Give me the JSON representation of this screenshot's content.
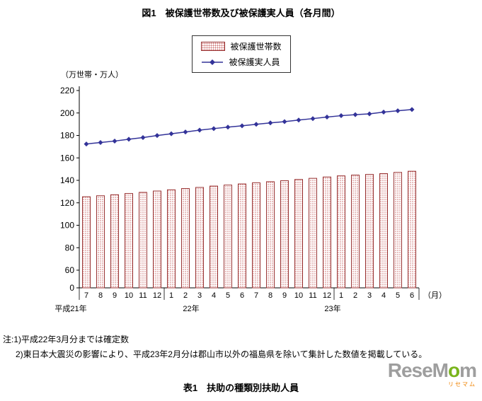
{
  "notes": {
    "line1": "注:1)平成22年3月分までは確定数",
    "line2": "2)東日本大震災の影響により、平成23年2月分は郡山市以外の福島県を除いて集計した数値を掲載している。"
  },
  "table_title": "表1　扶助の種類別扶助人員",
  "logo": {
    "part1": "ReseM",
    "part2": "o",
    "part3": "m",
    "sub": "リセマム"
  },
  "chart_data": {
    "type": "bar+line",
    "title": "図1　被保護世帯数及び被保護実人員（各月間）",
    "unit_label": "（万世帯・万人）",
    "month_label": "（月）",
    "months": [
      "7",
      "8",
      "9",
      "10",
      "11",
      "12",
      "1",
      "2",
      "3",
      "4",
      "5",
      "6",
      "7",
      "8",
      "9",
      "10",
      "11",
      "12",
      "1",
      "2",
      "3",
      "4",
      "5",
      "6"
    ],
    "era_groups": [
      {
        "label": "平成21年",
        "from": 0,
        "to": 5
      },
      {
        "label": "22年",
        "from": 6,
        "to": 17
      },
      {
        "label": "23年",
        "from": 18,
        "to": 23
      }
    ],
    "yticks": [
      0,
      60,
      80,
      100,
      120,
      140,
      160,
      180,
      200,
      220
    ],
    "ylim": [
      0,
      220
    ],
    "axis_break_between": [
      0,
      60
    ],
    "grid": false,
    "legend_position": "top",
    "series": [
      {
        "name": "被保護世帯数",
        "type": "bar",
        "color": "#993333",
        "fill_dot": "#cc7070",
        "values": [
          125.4,
          126.3,
          127.2,
          128.3,
          129.3,
          130.5,
          131.6,
          132.7,
          133.7,
          134.9,
          135.8,
          136.8,
          137.8,
          138.8,
          139.7,
          140.8,
          141.8,
          143.0,
          144.0,
          144.7,
          145.3,
          146.0,
          147.1,
          148.1
        ]
      },
      {
        "name": "被保護実人員",
        "type": "line",
        "color": "#333399",
        "marker": "diamond",
        "values": [
          172.4,
          173.7,
          175.0,
          176.6,
          178.1,
          179.9,
          181.5,
          183.1,
          184.7,
          186.1,
          187.4,
          188.6,
          189.9,
          191.2,
          192.3,
          193.7,
          195.0,
          196.4,
          197.6,
          198.5,
          199.2,
          200.8,
          202.0,
          203.1
        ]
      }
    ]
  }
}
